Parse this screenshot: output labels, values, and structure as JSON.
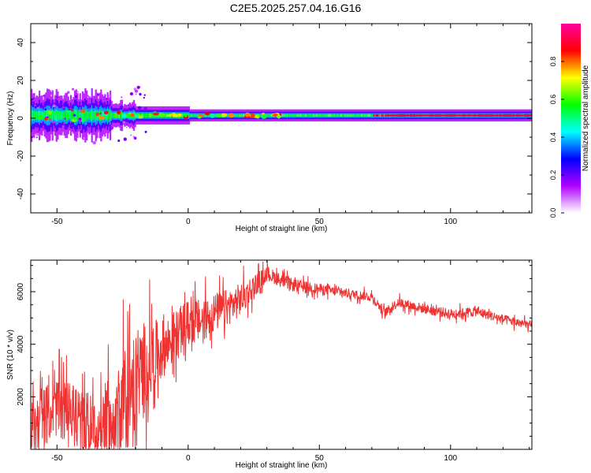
{
  "figure": {
    "title": "C2E5.2025.257.04.16.G16"
  },
  "chart_data": [
    {
      "type": "heatmap",
      "xlabel": "Height of straight line (km)",
      "ylabel": "Frequency (Hz)",
      "xlim": [
        -60,
        131
      ],
      "ylim": [
        -50,
        50
      ],
      "x_ticks": [
        -50,
        0,
        50,
        100
      ],
      "y_ticks": [
        -40,
        -20,
        0,
        20,
        40
      ],
      "grid": false,
      "colorbar": {
        "label": "Normalized spectral amplitude",
        "range": [
          0,
          1
        ],
        "ticks": [
          0.0,
          0.2,
          0.4,
          0.6,
          0.8
        ],
        "colors": [
          "#ffffff",
          "#b000ff",
          "#0000ff",
          "#00ffff",
          "#00ff00",
          "#ffff00",
          "#ff0000",
          "#ff00a0"
        ]
      },
      "signal": {
        "center_frequency_hz": 1.5,
        "segments": [
          {
            "x0": -60,
            "x1": -30,
            "amplitude": 0.55,
            "spread_hz": 5
          },
          {
            "x0": -30,
            "x1": 0,
            "amplitude": 0.6,
            "spread_hz": 3
          },
          {
            "x0": 0,
            "x1": 70,
            "amplitude": 0.62,
            "spread_hz": 2
          },
          {
            "x0": 70,
            "x1": 131,
            "amplitude": 0.9,
            "spread_hz": 2
          }
        ]
      }
    },
    {
      "type": "line",
      "xlabel": "Height of straight line (km)",
      "ylabel": "SNR (10 * v/v)",
      "xlim": [
        -60,
        131
      ],
      "ylim": [
        0,
        7200
      ],
      "x_ticks": [
        -50,
        0,
        50,
        100
      ],
      "y_ticks": [
        2000,
        4000,
        6000
      ],
      "grid": false,
      "line_color": "#ee3333",
      "series_trend": {
        "x": [
          -60,
          -55,
          -50,
          -45,
          -40,
          -35,
          -30,
          -25,
          -20,
          -15,
          -10,
          -5,
          0,
          5,
          10,
          15,
          20,
          25,
          30,
          35,
          40,
          50,
          60,
          70,
          75,
          80,
          90,
          100,
          110,
          120,
          131
        ],
        "y": [
          800,
          1300,
          1600,
          1400,
          1000,
          600,
          900,
          1700,
          2600,
          3300,
          3800,
          4300,
          4800,
          4900,
          5200,
          5400,
          5700,
          6200,
          6700,
          6450,
          6250,
          6100,
          5950,
          5800,
          5200,
          5600,
          5350,
          5150,
          5250,
          4950,
          4700
        ]
      },
      "series_noise": {
        "x": [
          -60,
          -40,
          -30,
          -20,
          -10,
          0,
          20,
          30,
          60,
          100,
          131
        ],
        "y": [
          1300,
          1500,
          2300,
          2700,
          1400,
          1100,
          800,
          350,
          220,
          250,
          220
        ]
      }
    }
  ]
}
